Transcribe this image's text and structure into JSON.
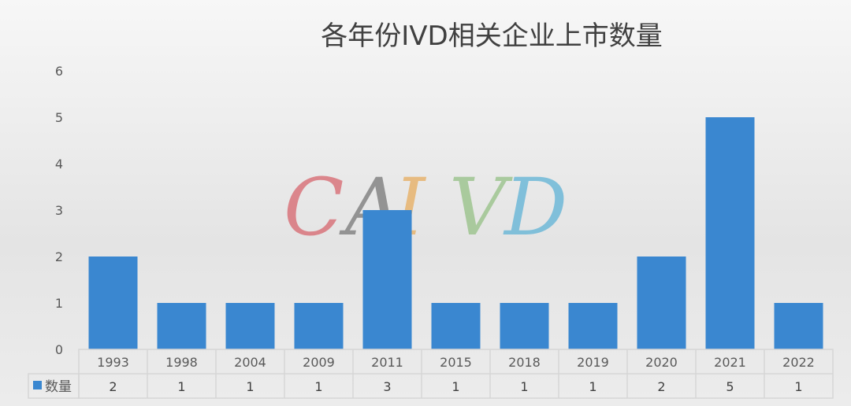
{
  "chart_data": {
    "type": "bar",
    "title": "各年份IVD相关企业上市数量",
    "categories": [
      "1993",
      "1998",
      "2004",
      "2009",
      "2011",
      "2015",
      "2018",
      "2019",
      "2020",
      "2021",
      "2022"
    ],
    "series": [
      {
        "name": "数量",
        "values": [
          2,
          1,
          1,
          1,
          3,
          1,
          1,
          1,
          2,
          5,
          1
        ]
      }
    ],
    "ylim": [
      0,
      6
    ],
    "yticks": [
      "0",
      "1",
      "2",
      "3",
      "4",
      "5",
      "6"
    ],
    "grid": false,
    "legend": "data-table",
    "data_table": true,
    "bar_color": "#3a87d0"
  },
  "watermark": {
    "text": "CAIVD",
    "colors": [
      "#d9757c",
      "#858585",
      "#e7b46f",
      "#9fc591",
      "#6fb9d8"
    ]
  }
}
